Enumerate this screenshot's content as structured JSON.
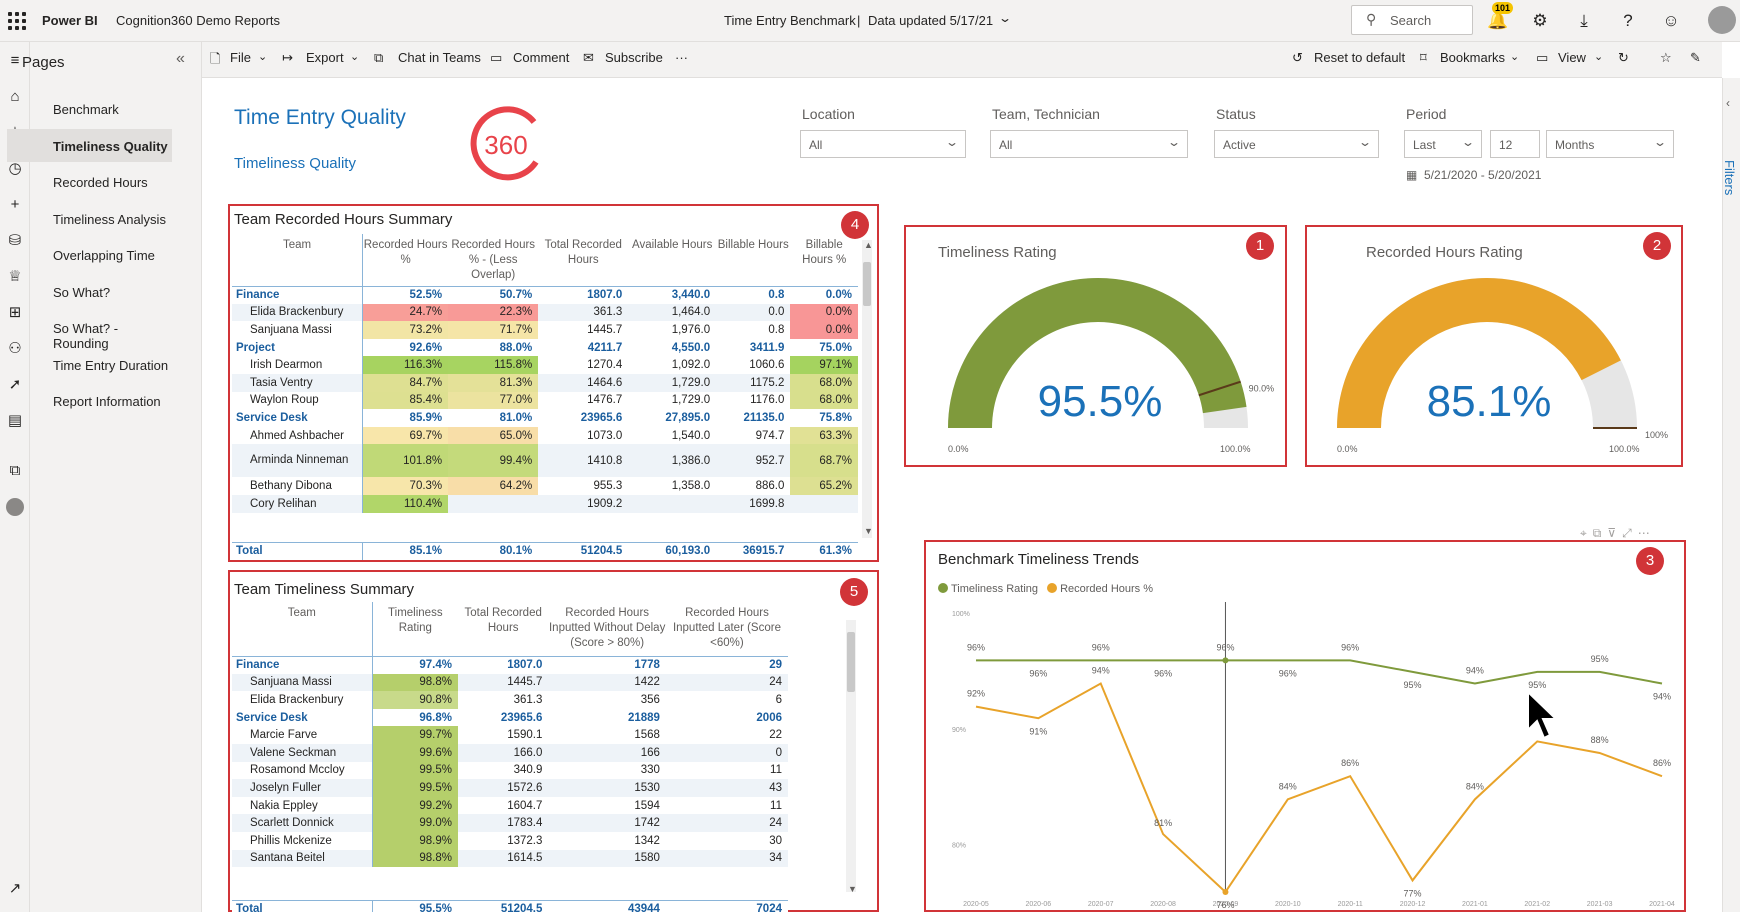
{
  "topbar": {
    "app": "Power BI",
    "workspace": "Cognition360 Demo Reports",
    "report_title": "Time Entry Benchmark",
    "separator": "|",
    "data_updated": "Data updated 5/17/21",
    "search_placeholder": "Search",
    "notification_count": "101"
  },
  "pages_panel": {
    "title": "Pages",
    "items": [
      {
        "label": "Benchmark"
      },
      {
        "label": "Timeliness Quality",
        "selected": true
      },
      {
        "label": "Recorded Hours"
      },
      {
        "label": "Timeliness Analysis"
      },
      {
        "label": "Overlapping Time"
      },
      {
        "label": "So What?"
      },
      {
        "label": "So What? - Rounding"
      },
      {
        "label": "Time Entry Duration"
      },
      {
        "label": "Report Information"
      }
    ]
  },
  "actionbar": {
    "file": "File",
    "export": "Export",
    "chat": "Chat in Teams",
    "comment": "Comment",
    "subscribe": "Subscribe",
    "more": "···",
    "reset": "Reset to default",
    "bookmarks": "Bookmarks",
    "view": "View"
  },
  "header": {
    "title": "Time Entry Quality",
    "subtitle": "Timeliness Quality",
    "logo_text": "360"
  },
  "slicers": {
    "location": {
      "label": "Location",
      "value": "All"
    },
    "team": {
      "label": "Team, Technician",
      "value": "All"
    },
    "status": {
      "label": "Status",
      "value": "Active"
    },
    "period": {
      "label": "Period",
      "mode": "Last",
      "count": "12",
      "unit": "Months",
      "range": "5/21/2020 - 5/20/2021"
    }
  },
  "filters_tab": "Filters",
  "badges": [
    "1",
    "2",
    "3",
    "4",
    "5"
  ],
  "recorded_summary": {
    "title": "Team Recorded Hours Summary",
    "columns": [
      "Team",
      "Recorded Hours %",
      "Recorded Hours % - (Less Overlap)",
      "Total Recorded Hours",
      "Available Hours",
      "Billable Hours",
      "Billable Hours %"
    ],
    "rows": [
      {
        "type": "grp",
        "cells": [
          "Finance",
          "52.5%",
          "50.7%",
          "1807.0",
          "3,440.0",
          "0.8",
          "0.0%"
        ]
      },
      {
        "type": "sub",
        "cells": [
          "Elida Brackenbury",
          "24.7%",
          "22.3%",
          "361.3",
          "1,464.0",
          "0.0",
          "0.0%"
        ]
      },
      {
        "type": "sub",
        "cells": [
          "Sanjuana Massi",
          "73.2%",
          "71.7%",
          "1445.7",
          "1,976.0",
          "0.8",
          "0.0%"
        ]
      },
      {
        "type": "grp",
        "cells": [
          "Project",
          "92.6%",
          "88.0%",
          "4211.7",
          "4,550.0",
          "3411.9",
          "75.0%"
        ]
      },
      {
        "type": "sub",
        "cells": [
          "Irish Dearmon",
          "116.3%",
          "115.8%",
          "1270.4",
          "1,092.0",
          "1060.6",
          "97.1%"
        ]
      },
      {
        "type": "sub",
        "cells": [
          "Tasia Ventry",
          "84.7%",
          "81.3%",
          "1464.6",
          "1,729.0",
          "1175.2",
          "68.0%"
        ]
      },
      {
        "type": "sub",
        "cells": [
          "Waylon Roup",
          "85.4%",
          "77.0%",
          "1476.7",
          "1,729.0",
          "1176.0",
          "68.0%"
        ]
      },
      {
        "type": "grp",
        "cells": [
          "Service Desk",
          "85.9%",
          "81.0%",
          "23965.6",
          "27,895.0",
          "21135.0",
          "75.8%"
        ]
      },
      {
        "type": "sub",
        "cells": [
          "Ahmed Ashbacher",
          "69.7%",
          "65.0%",
          "1073.0",
          "1,540.0",
          "974.7",
          "63.3%"
        ]
      },
      {
        "type": "sub2",
        "cells": [
          "Arminda Ninneman",
          "101.8%",
          "99.4%",
          "1410.8",
          "1,386.0",
          "952.7",
          "68.7%"
        ]
      },
      {
        "type": "sub",
        "cells": [
          "Bethany Dibona",
          "70.3%",
          "64.2%",
          "955.3",
          "1,358.0",
          "886.0",
          "65.2%"
        ]
      },
      {
        "type": "sub",
        "cells": [
          "Cory Relihan",
          "110.4%",
          "",
          "1909.2",
          "",
          "1699.8",
          ""
        ]
      }
    ],
    "total": [
      "Total",
      "85.1%",
      "80.1%",
      "51204.5",
      "60,193.0",
      "36915.7",
      "61.3%"
    ]
  },
  "timeliness_summary": {
    "title": "Team Timeliness Summary",
    "columns": [
      "Team",
      "Timeliness Rating",
      "Total Recorded Hours",
      "Recorded Hours Inputted Without Delay (Score > 80%)",
      "Recorded Hours Inputted Later (Score <60%)"
    ],
    "rows": [
      {
        "type": "grp",
        "cells": [
          "Finance",
          "97.4%",
          "1807.0",
          "1778",
          "29"
        ]
      },
      {
        "type": "sub",
        "cells": [
          "Sanjuana Massi",
          "98.8%",
          "1445.7",
          "1422",
          "24"
        ]
      },
      {
        "type": "sub",
        "cells": [
          "Elida Brackenbury",
          "90.8%",
          "361.3",
          "356",
          "6"
        ]
      },
      {
        "type": "grp",
        "cells": [
          "Service Desk",
          "96.8%",
          "23965.6",
          "21889",
          "2006"
        ]
      },
      {
        "type": "sub",
        "cells": [
          "Marcie Farve",
          "99.7%",
          "1590.1",
          "1568",
          "22"
        ]
      },
      {
        "type": "sub",
        "cells": [
          "Valene Seckman",
          "99.6%",
          "166.0",
          "166",
          "0"
        ]
      },
      {
        "type": "sub",
        "cells": [
          "Rosamond Mccloy",
          "99.5%",
          "340.9",
          "330",
          "11"
        ]
      },
      {
        "type": "sub",
        "cells": [
          "Joselyn Fuller",
          "99.5%",
          "1572.6",
          "1530",
          "43"
        ]
      },
      {
        "type": "sub",
        "cells": [
          "Nakia Eppley",
          "99.2%",
          "1604.7",
          "1594",
          "11"
        ]
      },
      {
        "type": "sub",
        "cells": [
          "Scarlett Donnick",
          "99.0%",
          "1783.4",
          "1742",
          "24"
        ]
      },
      {
        "type": "sub",
        "cells": [
          "Phillis Mckenize",
          "98.9%",
          "1372.3",
          "1342",
          "30"
        ]
      },
      {
        "type": "sub",
        "cells": [
          "Santana Beitel",
          "98.8%",
          "1614.5",
          "1580",
          "34"
        ]
      }
    ],
    "total": [
      "Total",
      "95.5%",
      "51204.5",
      "43944",
      "7024"
    ]
  },
  "gauge_timeliness": {
    "title": "Timeliness Rating",
    "value": 95.5,
    "value_text": "95.5%",
    "min_text": "0.0%",
    "max_text": "100.0%",
    "target": 90,
    "target_text": "90.0%",
    "color": "#7f9a3c"
  },
  "gauge_recorded": {
    "title": "Recorded Hours Rating",
    "value": 85.1,
    "value_text": "85.1%",
    "min_text": "0.0%",
    "max_text": "100.0%",
    "target": 100,
    "target_text": "100%",
    "color": "#e8a32a"
  },
  "chart_data": {
    "type": "line",
    "title": "Benchmark  Timeliness Trends",
    "x": [
      "2020-05",
      "2020-06",
      "2020-07",
      "2020-08",
      "2020-09",
      "2020-10",
      "2020-11",
      "2020-12",
      "2021-01",
      "2021-02",
      "2021-03",
      "2021-04"
    ],
    "ylim": [
      76,
      100
    ],
    "yticks": [
      "100%",
      "90%",
      "80%"
    ],
    "ytick_values": [
      100,
      90,
      80
    ],
    "series": [
      {
        "name": "Timeliness Rating",
        "color": "#7f9a3c",
        "values": [
          96,
          96,
          96,
          96,
          96,
          96,
          96,
          95,
          94,
          95,
          95,
          94
        ],
        "labels": [
          "96%",
          "96%",
          "96%",
          "96%",
          "96%",
          "96%",
          "96%",
          "95%",
          "94%",
          "95%",
          "95%",
          "94%"
        ]
      },
      {
        "name": "Recorded Hours %",
        "color": "#e8a32a",
        "values": [
          92,
          91,
          94,
          81,
          76,
          84,
          86,
          77,
          84,
          89,
          88,
          86
        ],
        "labels": [
          "92%",
          "91%",
          "94%",
          "81%",
          "76%",
          "84%",
          "86%",
          "77%",
          "84%",
          "",
          "88%",
          "86%"
        ]
      }
    ],
    "legend_position": "top-left"
  }
}
